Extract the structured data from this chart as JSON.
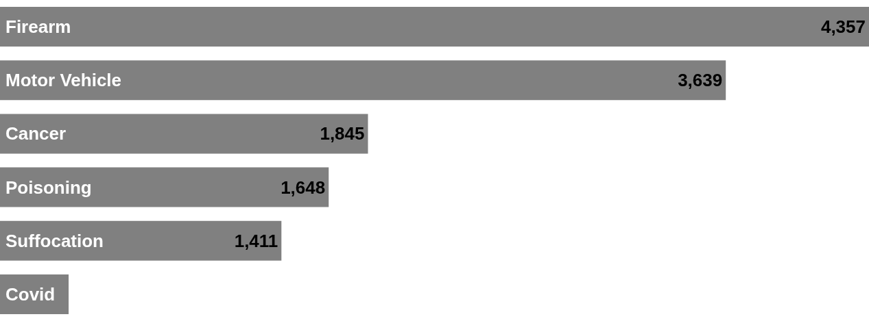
{
  "chart_data": {
    "type": "bar",
    "orientation": "horizontal",
    "categories": [
      "Firearm",
      "Motor Vehicle",
      "Cancer",
      "Poisoning",
      "Suffocation",
      "Covid"
    ],
    "values": [
      4357,
      3639,
      1845,
      1648,
      1411,
      344
    ],
    "value_labels": [
      "4,357",
      "3,639",
      "1,845",
      "1,648",
      "1,411",
      null
    ],
    "color": "#808080"
  }
}
